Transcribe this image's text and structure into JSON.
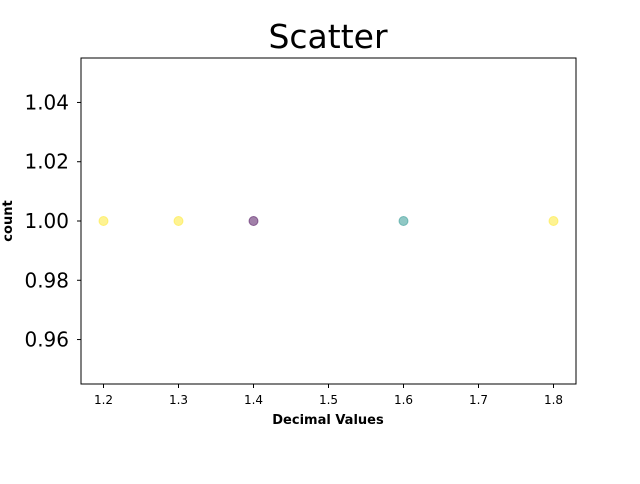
{
  "chart_data": {
    "type": "scatter",
    "title": "Scatter",
    "xlabel": "Decimal Values",
    "ylabel": "count",
    "xlim": [
      1.17,
      1.83
    ],
    "ylim": [
      0.945,
      1.055
    ],
    "x_ticks": [
      1.2,
      1.3,
      1.4,
      1.5,
      1.6,
      1.7,
      1.8
    ],
    "x_tick_labels": [
      "1.2",
      "1.3",
      "1.4",
      "1.5",
      "1.6",
      "1.7",
      "1.8"
    ],
    "y_ticks": [
      0.96,
      0.98,
      1.0,
      1.02,
      1.04
    ],
    "y_tick_labels": [
      "0.96",
      "0.98",
      "1.00",
      "1.02",
      "1.04"
    ],
    "grid": false,
    "points": [
      {
        "x": 1.2,
        "y": 1.0,
        "color": "#fde725"
      },
      {
        "x": 1.3,
        "y": 1.0,
        "color": "#fde725"
      },
      {
        "x": 1.4,
        "y": 1.0,
        "color": "#440154"
      },
      {
        "x": 1.6,
        "y": 1.0,
        "color": "#21918c"
      },
      {
        "x": 1.8,
        "y": 1.0,
        "color": "#fde725"
      }
    ],
    "point_alpha": 0.5
  }
}
